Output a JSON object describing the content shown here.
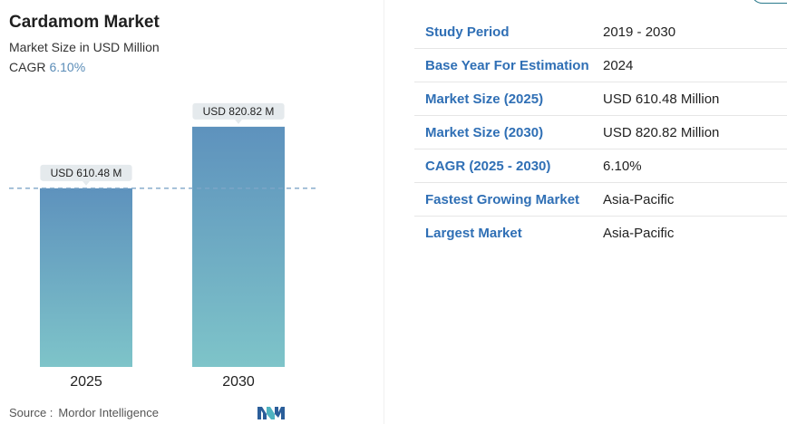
{
  "chart_data": {
    "type": "bar",
    "title": "Cardamom Market",
    "subtitle": "Market Size in USD Million",
    "cagr_label": "CAGR",
    "cagr_value": "6.10%",
    "categories": [
      "2025",
      "2030"
    ],
    "values": [
      610.48,
      820.82
    ],
    "data_labels": [
      "USD 610.48 M",
      "USD 820.82 M"
    ],
    "reference_line": 610.48,
    "ylim": [
      0,
      1000
    ],
    "grid": false,
    "colors": {
      "bar_top": "#5e92bd",
      "bar_bottom": "#7ec4c9",
      "dashed_line": "#7ea6c8",
      "label_bg": "#e5eaed"
    }
  },
  "source": {
    "label": "Source :",
    "value": "Mordor Intelligence"
  },
  "logo": {
    "icon": "mordor-intelligence-logo-icon",
    "color": "#2b5e9a",
    "accent": "#4fb3c0"
  },
  "info_table": [
    {
      "label": "Study Period",
      "value": "2019 - 2030"
    },
    {
      "label": "Base Year For Estimation",
      "value": "2024"
    },
    {
      "label": "Market Size (2025)",
      "value": "USD 610.48 Million"
    },
    {
      "label": "Market Size (2030)",
      "value": "USD 820.82 Million"
    },
    {
      "label": "CAGR (2025 - 2030)",
      "value": "6.10%"
    },
    {
      "label": "Fastest Growing Market",
      "value": "Asia-Pacific"
    },
    {
      "label": "Largest Market",
      "value": "Asia-Pacific"
    }
  ]
}
